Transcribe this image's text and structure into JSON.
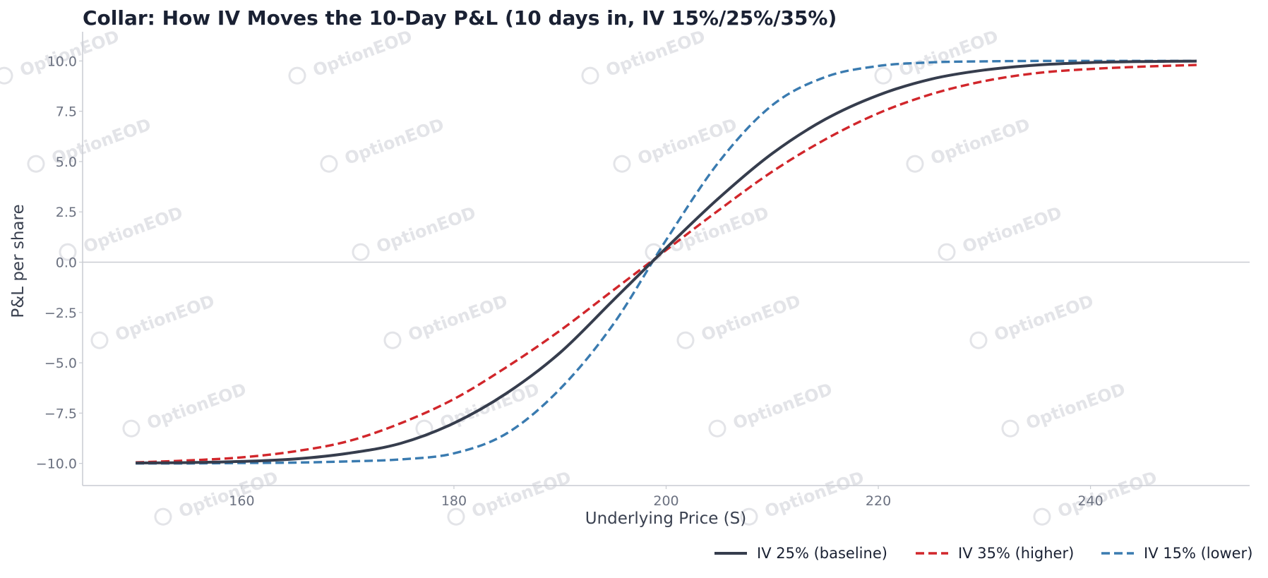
{
  "chart_data": {
    "type": "line",
    "title": "Collar: How IV Moves the 10-Day P&L (10 days in, IV 15%/25%/35%)",
    "xlabel": "Underlying Price (S)",
    "ylabel": "P&L per share",
    "xlim": [
      145,
      255
    ],
    "ylim": [
      -11.1,
      11.1
    ],
    "xticks": [
      160,
      180,
      200,
      220,
      240
    ],
    "yticks": [
      10.0,
      7.5,
      5.0,
      2.5,
      0.0,
      -2.5,
      -5.0,
      -7.5,
      -10.0
    ],
    "xtick_labels": [
      "160",
      "180",
      "200",
      "220",
      "240"
    ],
    "ytick_labels": [
      "10.0",
      "7.5",
      "5.0",
      "2.5",
      "0.0",
      "−2.5",
      "−5.0",
      "−7.5",
      "−10.0"
    ],
    "zero_line": true,
    "grid": false,
    "legend_position": "bottom-right",
    "watermark": "OptionEOD",
    "x": [
      150,
      155,
      160,
      165,
      170,
      175,
      180,
      185,
      190,
      195,
      200,
      205,
      210,
      215,
      220,
      225,
      230,
      235,
      240,
      245,
      250
    ],
    "series": [
      {
        "name": "IV 25% (baseline)",
        "color": "#363d4d",
        "style": "solid",
        "values": [
          -9.98,
          -9.96,
          -9.9,
          -9.78,
          -9.5,
          -9.0,
          -8.0,
          -6.5,
          -4.5,
          -1.9,
          0.7,
          3.2,
          5.4,
          7.1,
          8.3,
          9.1,
          9.55,
          9.8,
          9.92,
          9.97,
          9.99
        ]
      },
      {
        "name": "IV 35% (higher)",
        "color": "#d1262b",
        "style": "dashed",
        "values": [
          -9.95,
          -9.85,
          -9.7,
          -9.4,
          -8.9,
          -8.0,
          -6.8,
          -5.2,
          -3.4,
          -1.4,
          0.6,
          2.6,
          4.5,
          6.1,
          7.4,
          8.35,
          9.0,
          9.4,
          9.6,
          9.72,
          9.8
        ]
      },
      {
        "name": "IV 15% (lower)",
        "color": "#3a7bb0",
        "style": "dashed",
        "values": [
          -10.0,
          -10.0,
          -9.98,
          -9.96,
          -9.9,
          -9.8,
          -9.5,
          -8.5,
          -6.3,
          -3.1,
          1.1,
          5.0,
          7.8,
          9.2,
          9.75,
          9.93,
          9.98,
          10.0,
          10.0,
          10.0,
          10.0
        ]
      }
    ]
  }
}
